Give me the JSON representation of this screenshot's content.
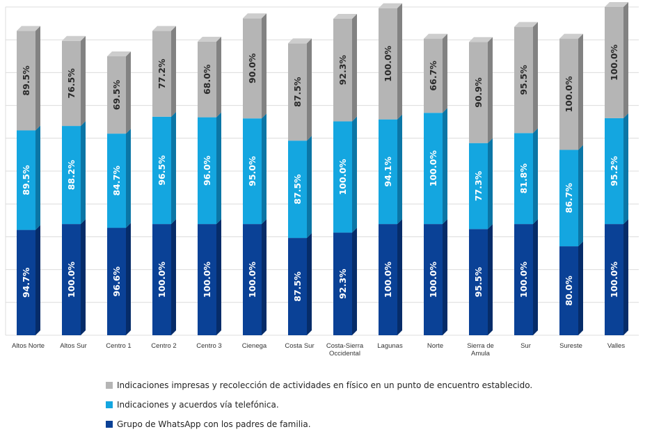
{
  "chart_data": {
    "type": "bar",
    "stacked": true,
    "orientation": "vertical",
    "grid": true,
    "legend_position": "bottom",
    "categories": [
      "Altos Norte",
      "Altos Sur",
      "Centro 1",
      "Centro 2",
      "Centro 3",
      "Cienega",
      "Costa Sur",
      "Costa-Sierra Occidental",
      "Lagunas",
      "Norte",
      "Sierra de Amula",
      "Sur",
      "Sureste",
      "Valles"
    ],
    "category_lines": [
      [
        "Altos Norte"
      ],
      [
        "Altos Sur"
      ],
      [
        "Centro 1"
      ],
      [
        "Centro 2"
      ],
      [
        "Centro 3"
      ],
      [
        "Cienega"
      ],
      [
        "Costa Sur"
      ],
      [
        "Costa-Sierra",
        "Occidental"
      ],
      [
        "Lagunas"
      ],
      [
        "Norte"
      ],
      [
        "Sierra de",
        "Amula"
      ],
      [
        "Sur"
      ],
      [
        "Sureste"
      ],
      [
        "Valles"
      ]
    ],
    "series": [
      {
        "name": "Grupo de WhatsApp con los padres de familia.",
        "color": "#0a4196",
        "side_color": "#062c69",
        "top_color": "#1a56b3",
        "values": [
          94.7,
          100.0,
          96.6,
          100.0,
          100.0,
          100.0,
          87.5,
          92.3,
          100.0,
          100.0,
          95.5,
          100.0,
          80.0,
          100.0
        ],
        "labels": [
          "94.7%",
          "100.0%",
          "96.6%",
          "100.0%",
          "100.0%",
          "100.0%",
          "87.5%",
          "92.3%",
          "100.0%",
          "100.0%",
          "95.5%",
          "100.0%",
          "80.0%",
          "100.0%"
        ]
      },
      {
        "name": "Indicaciones y acuerdos vía telefónica.",
        "color": "#14a6e0",
        "side_color": "#0b76a6",
        "top_color": "#3fbaea",
        "values": [
          89.5,
          88.2,
          84.7,
          96.5,
          96.0,
          95.0,
          87.5,
          100.0,
          94.1,
          100.0,
          77.3,
          81.8,
          86.7,
          95.2
        ],
        "labels": [
          "89.5%",
          "88.2%",
          "84.7%",
          "96.5%",
          "96.0%",
          "95.0%",
          "87.5%",
          "100.0%",
          "94.1%",
          "100.0%",
          "77.3%",
          "81.8%",
          "86.7%",
          "95.2%"
        ]
      },
      {
        "name": "Indicaciones impresas y recolección de actividades en físico en un punto de encuentro establecido.",
        "color": "#b5b5b5",
        "side_color": "#828282",
        "top_color": "#cdcdcd",
        "values": [
          89.5,
          76.5,
          69.5,
          77.2,
          68.0,
          90.0,
          87.5,
          92.3,
          100.0,
          66.7,
          90.9,
          95.5,
          100.0,
          100.0
        ],
        "labels": [
          "89.5%",
          "76.5%",
          "69.5%",
          "77.2%",
          "68.0%",
          "90.0%",
          "87.5%",
          "92.3%",
          "100.0%",
          "66.7%",
          "90.9%",
          "95.5%",
          "100.0%",
          "100.0%"
        ]
      }
    ],
    "legend_order": [
      2,
      1,
      0
    ],
    "title": "",
    "xlabel": "",
    "ylabel": ""
  }
}
